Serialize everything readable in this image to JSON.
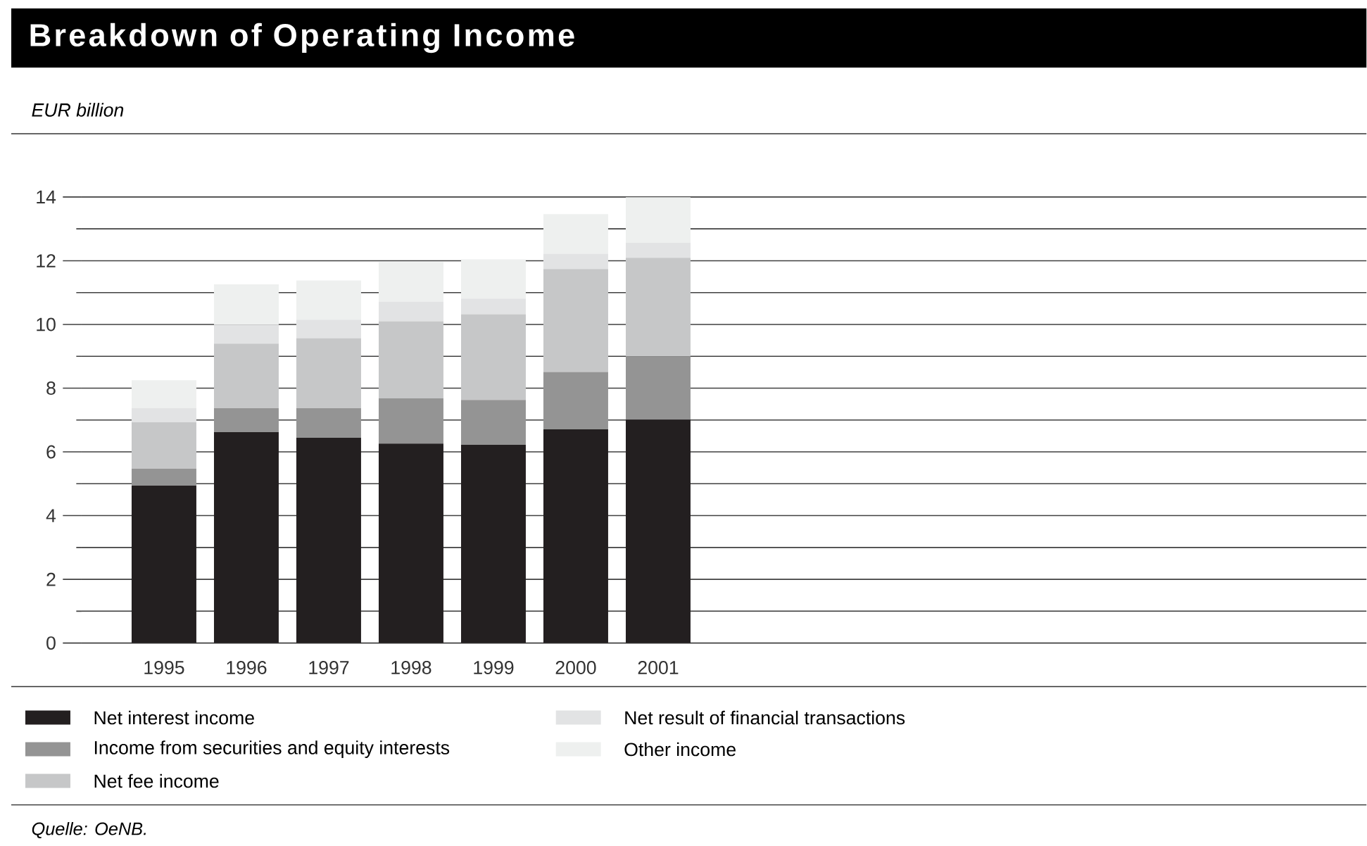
{
  "chart_data": {
    "type": "bar",
    "stacked": true,
    "title": "Breakdown of Operating Income",
    "ylabel": "EUR billion",
    "categories": [
      "1995",
      "1996",
      "1997",
      "1998",
      "1999",
      "2000",
      "2001"
    ],
    "series": [
      {
        "name": "Net interest income",
        "color": "#231f20",
        "values": [
          4.94,
          6.62,
          6.44,
          6.26,
          6.22,
          6.71,
          7.01
        ]
      },
      {
        "name": "Income from securities and equity interests",
        "color": "#949494",
        "values": [
          0.53,
          0.75,
          0.93,
          1.42,
          1.41,
          1.8,
          1.99
        ]
      },
      {
        "name": "Net fee income",
        "color": "#c6c7c8",
        "values": [
          1.46,
          2.03,
          2.2,
          2.42,
          2.69,
          3.23,
          3.09
        ]
      },
      {
        "name": "Net result of financial transactions",
        "color": "#e2e3e4",
        "values": [
          0.44,
          0.59,
          0.58,
          0.62,
          0.49,
          0.48,
          0.48
        ]
      },
      {
        "name": "Other income",
        "color": "#eef0ef",
        "values": [
          0.88,
          1.27,
          1.23,
          1.24,
          1.23,
          1.24,
          1.42
        ]
      }
    ],
    "ylim": [
      0,
      14
    ],
    "yticks": [
      0,
      2,
      4,
      6,
      8,
      10,
      12,
      14
    ],
    "grid": true,
    "legend": "bottom",
    "annotations": [
      "Quelle: OeNB."
    ]
  }
}
